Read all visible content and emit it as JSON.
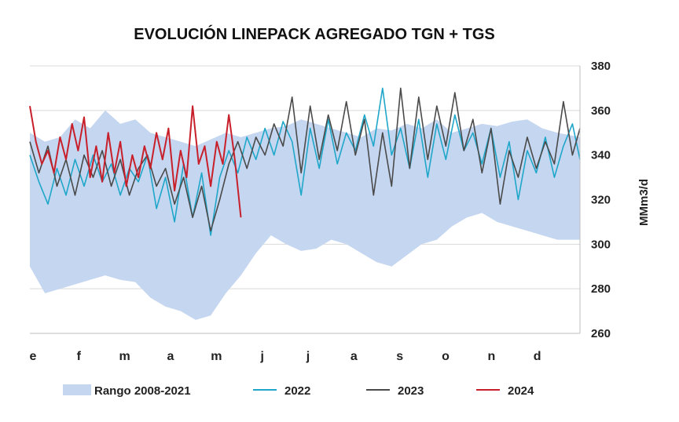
{
  "chart_data": {
    "type": "line",
    "title": "EVOLUCIÓN LINEPACK AGREGADO TGN + TGS",
    "ylabel": "MMm3/d",
    "xlabel": "",
    "ylim": [
      260,
      380
    ],
    "yticks": [
      260,
      280,
      300,
      320,
      340,
      360,
      380
    ],
    "months": [
      "e",
      "f",
      "m",
      "a",
      "m",
      "j",
      "j",
      "a",
      "s",
      "o",
      "n",
      "d"
    ],
    "grid": "horizontal",
    "legend_position": "bottom",
    "x_unit": "day_of_year",
    "band": {
      "name": "Rango 2008-2021",
      "color": "#c5d6f0",
      "x": [
        0,
        10,
        20,
        30,
        40,
        50,
        60,
        70,
        80,
        90,
        100,
        110,
        120,
        130,
        140,
        150,
        160,
        170,
        180,
        190,
        200,
        210,
        220,
        230,
        240,
        250,
        260,
        270,
        280,
        290,
        300,
        310,
        320,
        330,
        340,
        350,
        365
      ],
      "upper": [
        350,
        346,
        348,
        356,
        352,
        360,
        354,
        356,
        350,
        348,
        346,
        344,
        347,
        350,
        348,
        350,
        352,
        353,
        356,
        354,
        352,
        350,
        348,
        352,
        351,
        354,
        352,
        356,
        350,
        352,
        354,
        353,
        355,
        356,
        352,
        350,
        348
      ],
      "lower": [
        290,
        278,
        280,
        282,
        284,
        286,
        284,
        283,
        276,
        272,
        270,
        266,
        268,
        278,
        286,
        296,
        304,
        300,
        297,
        298,
        302,
        300,
        296,
        292,
        290,
        295,
        300,
        302,
        308,
        312,
        314,
        310,
        308,
        306,
        304,
        302,
        302
      ]
    },
    "series": [
      {
        "name": "2022",
        "color": "#1fa7c9",
        "x": [
          0,
          6,
          12,
          18,
          24,
          30,
          36,
          42,
          48,
          54,
          60,
          66,
          72,
          78,
          84,
          90,
          96,
          102,
          108,
          114,
          120,
          126,
          132,
          138,
          144,
          150,
          156,
          162,
          168,
          174,
          180,
          186,
          192,
          198,
          204,
          210,
          216,
          222,
          228,
          234,
          240,
          246,
          252,
          258,
          264,
          270,
          276,
          282,
          288,
          294,
          300,
          306,
          312,
          318,
          324,
          330,
          336,
          342,
          348,
          354,
          360,
          365
        ],
        "values": [
          340,
          328,
          318,
          334,
          322,
          338,
          326,
          340,
          328,
          336,
          322,
          334,
          328,
          340,
          316,
          330,
          310,
          336,
          312,
          332,
          304,
          330,
          342,
          332,
          348,
          338,
          352,
          340,
          355,
          346,
          322,
          352,
          334,
          356,
          336,
          350,
          342,
          358,
          344,
          370,
          340,
          352,
          334,
          356,
          330,
          354,
          338,
          358,
          342,
          350,
          336,
          352,
          330,
          346,
          320,
          342,
          332,
          348,
          330,
          344,
          354,
          338
        ]
      },
      {
        "name": "2023",
        "color": "#4a4a4a",
        "x": [
          0,
          6,
          12,
          18,
          24,
          30,
          36,
          42,
          48,
          54,
          60,
          66,
          72,
          78,
          84,
          90,
          96,
          102,
          108,
          114,
          120,
          126,
          132,
          138,
          144,
          150,
          156,
          162,
          168,
          174,
          180,
          186,
          192,
          198,
          204,
          210,
          216,
          222,
          228,
          234,
          240,
          246,
          252,
          258,
          264,
          270,
          276,
          282,
          288,
          294,
          300,
          306,
          312,
          318,
          324,
          330,
          336,
          342,
          348,
          354,
          360,
          365
        ],
        "values": [
          346,
          332,
          344,
          326,
          338,
          322,
          340,
          330,
          342,
          326,
          338,
          322,
          334,
          340,
          326,
          334,
          318,
          330,
          312,
          326,
          306,
          320,
          336,
          346,
          334,
          348,
          340,
          354,
          344,
          366,
          332,
          362,
          338,
          358,
          342,
          364,
          340,
          356,
          322,
          350,
          326,
          370,
          334,
          366,
          338,
          362,
          344,
          368,
          342,
          356,
          332,
          352,
          318,
          342,
          330,
          348,
          334,
          346,
          336,
          364,
          340,
          352
        ]
      },
      {
        "name": "2024",
        "color": "#c8202a",
        "x": [
          0,
          4,
          8,
          12,
          16,
          20,
          24,
          28,
          32,
          36,
          40,
          44,
          48,
          52,
          56,
          60,
          64,
          68,
          72,
          76,
          80,
          84,
          88,
          92,
          96,
          100,
          104,
          108,
          112,
          116,
          120,
          124,
          128,
          132,
          136,
          140
        ],
        "values": [
          362,
          346,
          336,
          342,
          332,
          348,
          338,
          354,
          342,
          357,
          330,
          344,
          328,
          350,
          332,
          346,
          326,
          340,
          330,
          344,
          334,
          350,
          338,
          352,
          324,
          342,
          330,
          362,
          336,
          344,
          326,
          346,
          336,
          358,
          338,
          312
        ]
      }
    ]
  }
}
